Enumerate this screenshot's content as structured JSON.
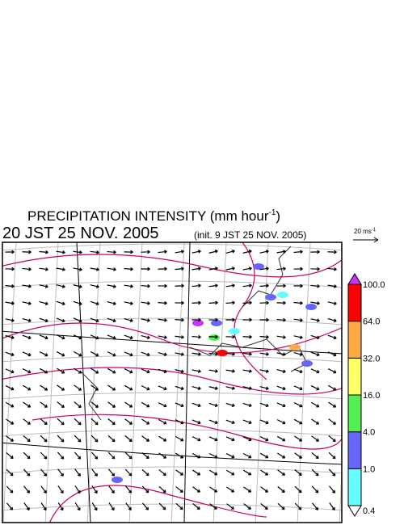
{
  "title": {
    "text": "PRECIPITATION INTENSITY (mm hour",
    "superscript": "-1",
    "closing": ")"
  },
  "time": "20 JST 25 NOV. 2005",
  "init": "(init. 9 JST 25 NOV. 2005)",
  "vector_scale": {
    "text": "20 ms",
    "superscript": "-1"
  },
  "colorbar": {
    "levels": [
      0.4,
      {
        "value": 1,
        "label": "1.0"
      },
      {
        "value": 4,
        "label": "4.0"
      },
      {
        "value": 16,
        "label": "16.0"
      },
      {
        "value": 32,
        "label": "32.0"
      },
      {
        "value": 64,
        "label": "64.0"
      },
      {
        "value": 100,
        "label": "100.0"
      }
    ],
    "colors": [
      "#66ffff",
      "#6666ff",
      "#55ee55",
      "#ffff66",
      "#ffaa44",
      "#ff0000"
    ],
    "over_color": "#cc33ff",
    "under_color": "#ffffff"
  }
}
